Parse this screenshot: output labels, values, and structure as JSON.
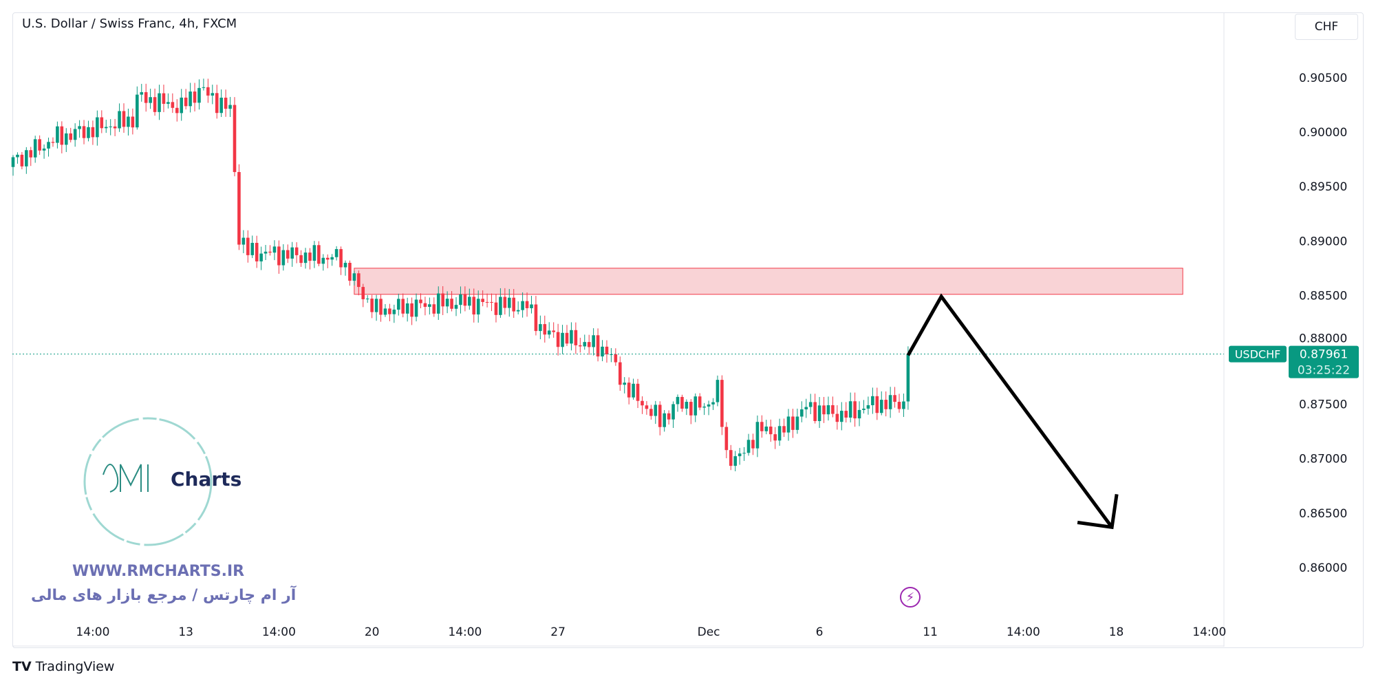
{
  "header": {
    "title": "U.S. Dollar / Swiss Franc, 4h, FXCM",
    "currency": "CHF"
  },
  "colors": {
    "up": "#089981",
    "down": "#f23645",
    "zone_fill": "#f9d3d6",
    "zone_border": "#f23645",
    "arrow": "#000000",
    "watermark": "#6b6fb3"
  },
  "last_price": {
    "symbol": "USDCHF",
    "price": "0.87961",
    "countdown": "03:25:22"
  },
  "watermark": {
    "logo_text": "Charts",
    "url": "WWW.RMCHARTS.IR",
    "tagline": "آر ام چارتس / مرجع بازار های مالی"
  },
  "footer": {
    "brand": "TradingView"
  },
  "chart_data": {
    "type": "candlestick",
    "title": "U.S. Dollar / Swiss Franc, 4h, FXCM",
    "ylim": [
      0.8575,
      0.9075
    ],
    "y_ticks": [
      "0.90500",
      "0.90000",
      "0.89500",
      "0.89000",
      "0.88500",
      "0.88000",
      "0.87500",
      "0.87000",
      "0.86500",
      "0.86000"
    ],
    "x_ticks": [
      {
        "label": "14:00",
        "i": 18
      },
      {
        "label": "13",
        "i": 39
      },
      {
        "label": "14:00",
        "i": 60
      },
      {
        "label": "20",
        "i": 81
      },
      {
        "label": "14:00",
        "i": 102
      },
      {
        "label": "27",
        "i": 123
      },
      {
        "label": "Dec",
        "i": 157
      },
      {
        "label": "6",
        "i": 182
      },
      {
        "label": "11",
        "i": 207
      },
      {
        "label": "14:00",
        "i": 228
      },
      {
        "label": "18",
        "i": 249
      },
      {
        "label": "14:00",
        "i": 270
      }
    ],
    "close_path": [
      [
        0,
        0.8973
      ],
      [
        10,
        0.8995
      ],
      [
        27,
        0.9012
      ],
      [
        28,
        0.9032
      ],
      [
        38,
        0.9023
      ],
      [
        42,
        0.904
      ],
      [
        49,
        0.902
      ],
      [
        50,
        0.8965
      ],
      [
        51,
        0.8904
      ],
      [
        53,
        0.889
      ],
      [
        74,
        0.8884
      ],
      [
        78,
        0.8856
      ],
      [
        82,
        0.8836
      ],
      [
        100,
        0.8844
      ],
      [
        116,
        0.884
      ],
      [
        120,
        0.8815
      ],
      [
        128,
        0.8807
      ],
      [
        134,
        0.88
      ],
      [
        138,
        0.8767
      ],
      [
        146,
        0.8735
      ],
      [
        150,
        0.8751
      ],
      [
        156,
        0.8747
      ],
      [
        159,
        0.8763
      ],
      [
        161,
        0.8703
      ],
      [
        164,
        0.87
      ],
      [
        168,
        0.8727
      ],
      [
        173,
        0.8723
      ],
      [
        179,
        0.8747
      ],
      [
        187,
        0.874
      ],
      [
        195,
        0.8751
      ],
      [
        201,
        0.8751
      ],
      [
        202,
        0.8795
      ]
    ],
    "last_close": 0.87961,
    "resistance_zone": {
      "from_i": 77,
      "to_i": 264,
      "low": 0.8851,
      "high": 0.8875
    },
    "projection": [
      [
        202,
        0.8795
      ],
      [
        209.5,
        0.8849
      ],
      [
        248,
        0.8637
      ]
    ]
  }
}
